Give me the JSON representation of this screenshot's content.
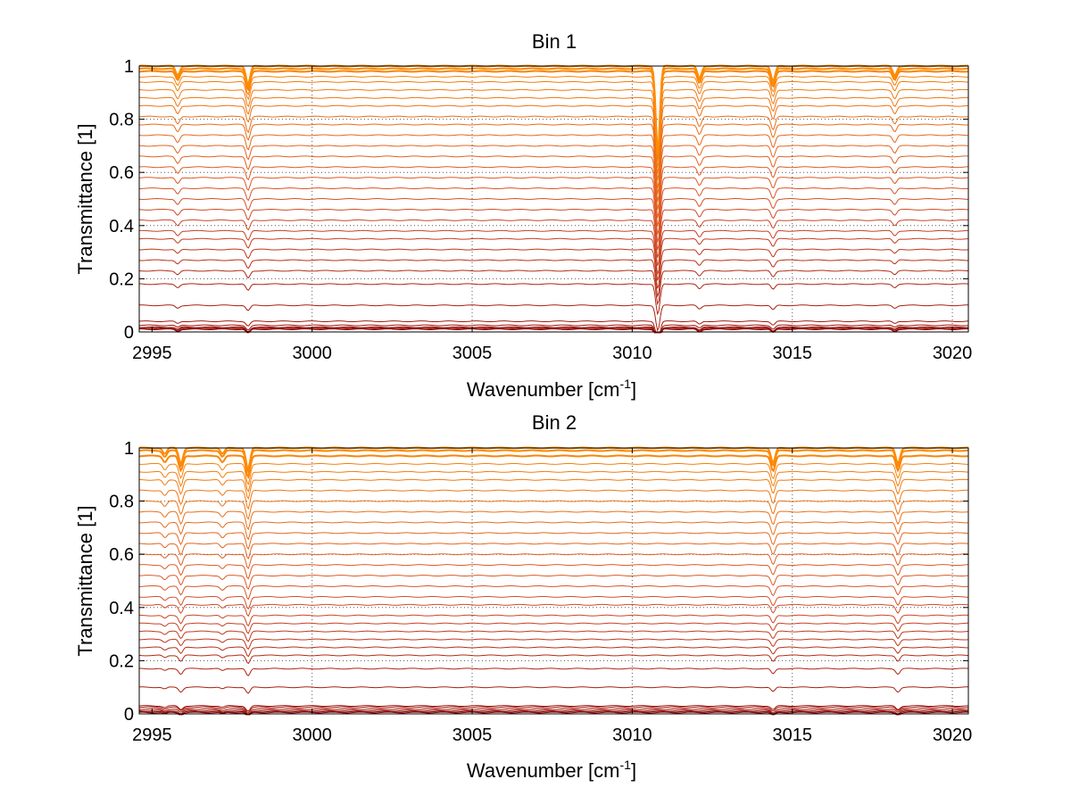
{
  "chart_data": [
    {
      "type": "line",
      "title": "Bin 1",
      "xlabel": "Wavenumber [cm",
      "xlabel_sup": "-1",
      "xlabel_suffix": "]",
      "ylabel": "Transmittance [1]",
      "xlim": [
        2994.6,
        3020.5
      ],
      "ylim": [
        0,
        1
      ],
      "grid": true,
      "xticks": [
        2995,
        3000,
        3005,
        3010,
        3015,
        3020
      ],
      "yticks": [
        0,
        0.2,
        0.4,
        0.6,
        0.8,
        1
      ],
      "xtick_labels": [
        "2995",
        "3000",
        "3005",
        "3010",
        "3015",
        "3020"
      ],
      "ytick_labels": [
        "0",
        "0.2",
        "0.4",
        "0.6",
        "0.8",
        "1"
      ],
      "series_count": 32,
      "baselines": [
        0.01,
        0.012,
        0.015,
        0.018,
        0.025,
        0.04,
        0.1,
        0.18,
        0.23,
        0.27,
        0.31,
        0.35,
        0.38,
        0.42,
        0.46,
        0.5,
        0.54,
        0.58,
        0.62,
        0.66,
        0.7,
        0.74,
        0.78,
        0.81,
        0.85,
        0.88,
        0.91,
        0.94,
        0.96,
        0.98,
        0.99,
        1.0
      ],
      "absorption_lines": [
        {
          "x": 2995.8,
          "depth": 0.03
        },
        {
          "x": 2998.0,
          "depth": 0.06
        },
        {
          "x": 3010.8,
          "depth": 0.28
        },
        {
          "x": 3012.1,
          "depth": 0.04
        },
        {
          "x": 3014.4,
          "depth": 0.05
        },
        {
          "x": 3018.2,
          "depth": 0.03
        }
      ],
      "colors": {
        "low": "#8b0000",
        "mid": "#d9532a",
        "high": "#ff8c00"
      }
    },
    {
      "type": "line",
      "title": "Bin 2",
      "xlabel": "Wavenumber [cm",
      "xlabel_sup": "-1",
      "xlabel_suffix": "]",
      "ylabel": "Transmittance [1]",
      "xlim": [
        2994.6,
        3020.5
      ],
      "ylim": [
        0,
        1
      ],
      "grid": true,
      "xticks": [
        2995,
        3000,
        3005,
        3010,
        3015,
        3020
      ],
      "yticks": [
        0,
        0.2,
        0.4,
        0.6,
        0.8,
        1
      ],
      "xtick_labels": [
        "2995",
        "3000",
        "3005",
        "3010",
        "3015",
        "3020"
      ],
      "ytick_labels": [
        "0",
        "0.2",
        "0.4",
        "0.6",
        "0.8",
        "1"
      ],
      "series_count": 32,
      "baselines": [
        0.005,
        0.008,
        0.012,
        0.018,
        0.025,
        0.03,
        0.1,
        0.17,
        0.22,
        0.25,
        0.28,
        0.31,
        0.34,
        0.37,
        0.41,
        0.44,
        0.48,
        0.52,
        0.56,
        0.6,
        0.64,
        0.68,
        0.72,
        0.76,
        0.8,
        0.84,
        0.88,
        0.91,
        0.94,
        0.97,
        0.99,
        1.0
      ],
      "absorption_lines": [
        {
          "x": 2995.4,
          "depth": 0.02
        },
        {
          "x": 2995.9,
          "depth": 0.05
        },
        {
          "x": 2997.2,
          "depth": 0.02
        },
        {
          "x": 2998.0,
          "depth": 0.07
        },
        {
          "x": 3014.4,
          "depth": 0.05
        },
        {
          "x": 3018.3,
          "depth": 0.05
        }
      ],
      "colors": {
        "low": "#8b0000",
        "mid": "#d9532a",
        "high": "#ff8c00"
      }
    }
  ]
}
